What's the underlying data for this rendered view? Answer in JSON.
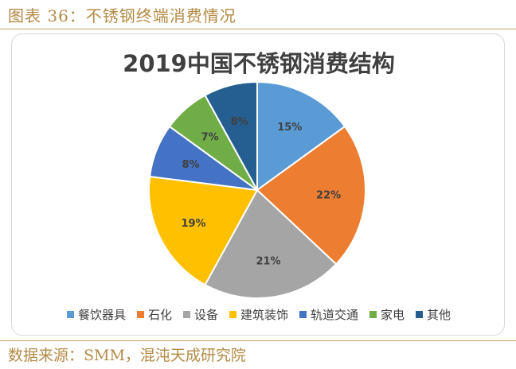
{
  "figure": {
    "caption": "图表 36：不锈钢终端消费情况",
    "source": "数据来源：SMM，混沌天成研究院"
  },
  "chart_data": {
    "type": "pie",
    "title": "2019中国不锈钢消费结构",
    "legend_position": "bottom",
    "slices": [
      {
        "name": "餐饮器具",
        "value": 15,
        "label": "15%",
        "color": "#5b9bd5"
      },
      {
        "name": "石化",
        "value": 22,
        "label": "22%",
        "color": "#ed7d31"
      },
      {
        "name": "设备",
        "value": 21,
        "label": "21%",
        "color": "#a5a5a5"
      },
      {
        "name": "建筑装饰",
        "value": 19,
        "label": "19%",
        "color": "#ffc000"
      },
      {
        "name": "轨道交通",
        "value": 8,
        "label": "8%",
        "color": "#4472c4"
      },
      {
        "name": "家电",
        "value": 7,
        "label": "7%",
        "color": "#70ad47"
      },
      {
        "name": "其他",
        "value": 8,
        "label": "8%",
        "color": "#255e91"
      }
    ]
  }
}
